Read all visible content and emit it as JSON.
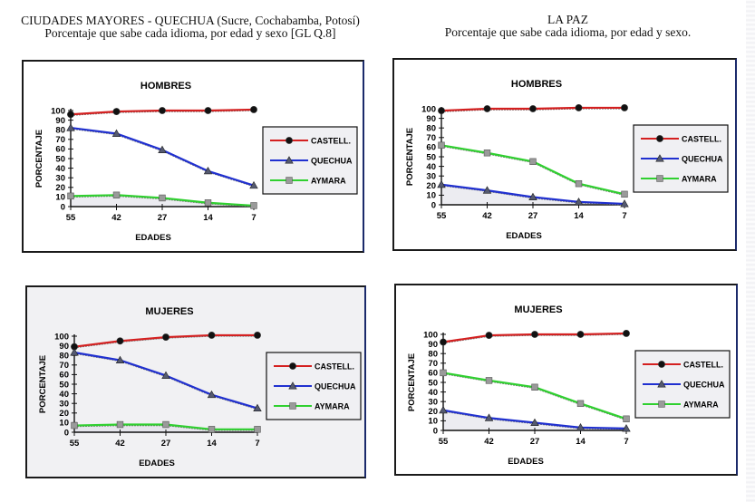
{
  "page": {
    "left_title": "CIUDADES MAYORES - QUECHUA (Sucre, Cochabamba, Potosí)",
    "left_subtitle": "Porcentaje que sabe cada idioma, por edad y sexo [GL Q.8]",
    "right_title": "LA PAZ",
    "right_subtitle": "Porcentaje que sabe cada idioma, por edad y sexo."
  },
  "colors": {
    "castell": "#d42020",
    "quechua": "#2030d0",
    "aymara": "#30d030",
    "marker_dark": "#111111",
    "marker_grey": "#8a8a8a"
  },
  "chart_data": [
    {
      "type": "line",
      "group": "Ciudades Mayores - Quechua",
      "title": "HOMBRES",
      "xlabel": "EDADES",
      "ylabel": "PORCENTAJE",
      "categories": [
        "55",
        "42",
        "27",
        "14",
        "7"
      ],
      "yticks": [
        0,
        10,
        20,
        30,
        40,
        50,
        60,
        70,
        80,
        90,
        100
      ],
      "ylim": [
        0,
        100
      ],
      "legend_position": "right",
      "series": [
        {
          "name": "CASTELL.",
          "key": "castell",
          "marker": "circle",
          "values": [
            96,
            99,
            100,
            100,
            101
          ]
        },
        {
          "name": "QUECHUA",
          "key": "quechua",
          "marker": "triangle",
          "values": [
            82,
            76,
            59,
            37,
            22
          ]
        },
        {
          "name": "AYMARA",
          "key": "aymara",
          "marker": "square",
          "values": [
            11,
            12,
            9,
            4,
            1
          ]
        }
      ]
    },
    {
      "type": "line",
      "group": "La Paz",
      "title": "HOMBRES",
      "xlabel": "EDADES",
      "ylabel": "PORCENTAJE",
      "categories": [
        "55",
        "42",
        "27",
        "14",
        "7"
      ],
      "yticks": [
        0,
        10,
        20,
        30,
        40,
        50,
        60,
        70,
        80,
        90,
        100
      ],
      "ylim": [
        0,
        100
      ],
      "legend_position": "right",
      "series": [
        {
          "name": "CASTELL.",
          "key": "castell",
          "marker": "circle",
          "values": [
            98,
            100,
            100,
            101,
            101
          ]
        },
        {
          "name": "QUECHUA",
          "key": "quechua",
          "marker": "triangle",
          "values": [
            21,
            15,
            8,
            3,
            1
          ]
        },
        {
          "name": "AYMARA",
          "key": "aymara",
          "marker": "square",
          "values": [
            62,
            54,
            45,
            22,
            11
          ]
        }
      ]
    },
    {
      "type": "line",
      "group": "Ciudades Mayores - Quechua",
      "title": "MUJERES",
      "xlabel": "EDADES",
      "ylabel": "PORCENTAJE",
      "categories": [
        "55",
        "42",
        "27",
        "14",
        "7"
      ],
      "yticks": [
        0,
        10,
        20,
        30,
        40,
        50,
        60,
        70,
        80,
        90,
        100
      ],
      "ylim": [
        0,
        100
      ],
      "legend_position": "right",
      "series": [
        {
          "name": "CASTELL.",
          "key": "castell",
          "marker": "circle",
          "values": [
            89,
            95,
            99,
            101,
            101
          ]
        },
        {
          "name": "QUECHUA",
          "key": "quechua",
          "marker": "triangle",
          "values": [
            83,
            75,
            59,
            39,
            25
          ]
        },
        {
          "name": "AYMARA",
          "key": "aymara",
          "marker": "square",
          "values": [
            7,
            8,
            8,
            3,
            3
          ]
        }
      ]
    },
    {
      "type": "line",
      "group": "La Paz",
      "title": "MUJERES",
      "xlabel": "EDADES",
      "ylabel": "PORCENTAJE",
      "categories": [
        "55",
        "42",
        "27",
        "14",
        "7"
      ],
      "yticks": [
        0,
        10,
        20,
        30,
        40,
        50,
        60,
        70,
        80,
        90,
        100
      ],
      "ylim": [
        0,
        100
      ],
      "legend_position": "right",
      "series": [
        {
          "name": "CASTELL.",
          "key": "castell",
          "marker": "circle",
          "values": [
            92,
            99,
            100,
            100,
            101
          ]
        },
        {
          "name": "QUECHUA",
          "key": "quechua",
          "marker": "triangle",
          "values": [
            21,
            13,
            8,
            3,
            2
          ]
        },
        {
          "name": "AYMARA",
          "key": "aymara",
          "marker": "square",
          "values": [
            60,
            52,
            45,
            28,
            12
          ]
        }
      ]
    }
  ]
}
